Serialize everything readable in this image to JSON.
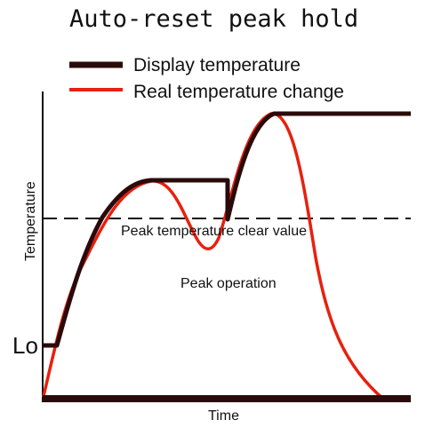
{
  "title": "Auto-reset peak hold",
  "legend": {
    "display_label": "Display temperature",
    "real_label": "Real temperature change"
  },
  "axes": {
    "x_label": "Time",
    "y_label": "Temperature"
  },
  "annotations": {
    "clear_value_label": "Peak temperature clear value",
    "peak_operation_label": "Peak operation",
    "lo_label": "Lo"
  },
  "colors": {
    "display_line": "#2a0a0a",
    "real_line": "#e8200f",
    "axis": "#111111",
    "dashed_line": "#111111"
  }
}
